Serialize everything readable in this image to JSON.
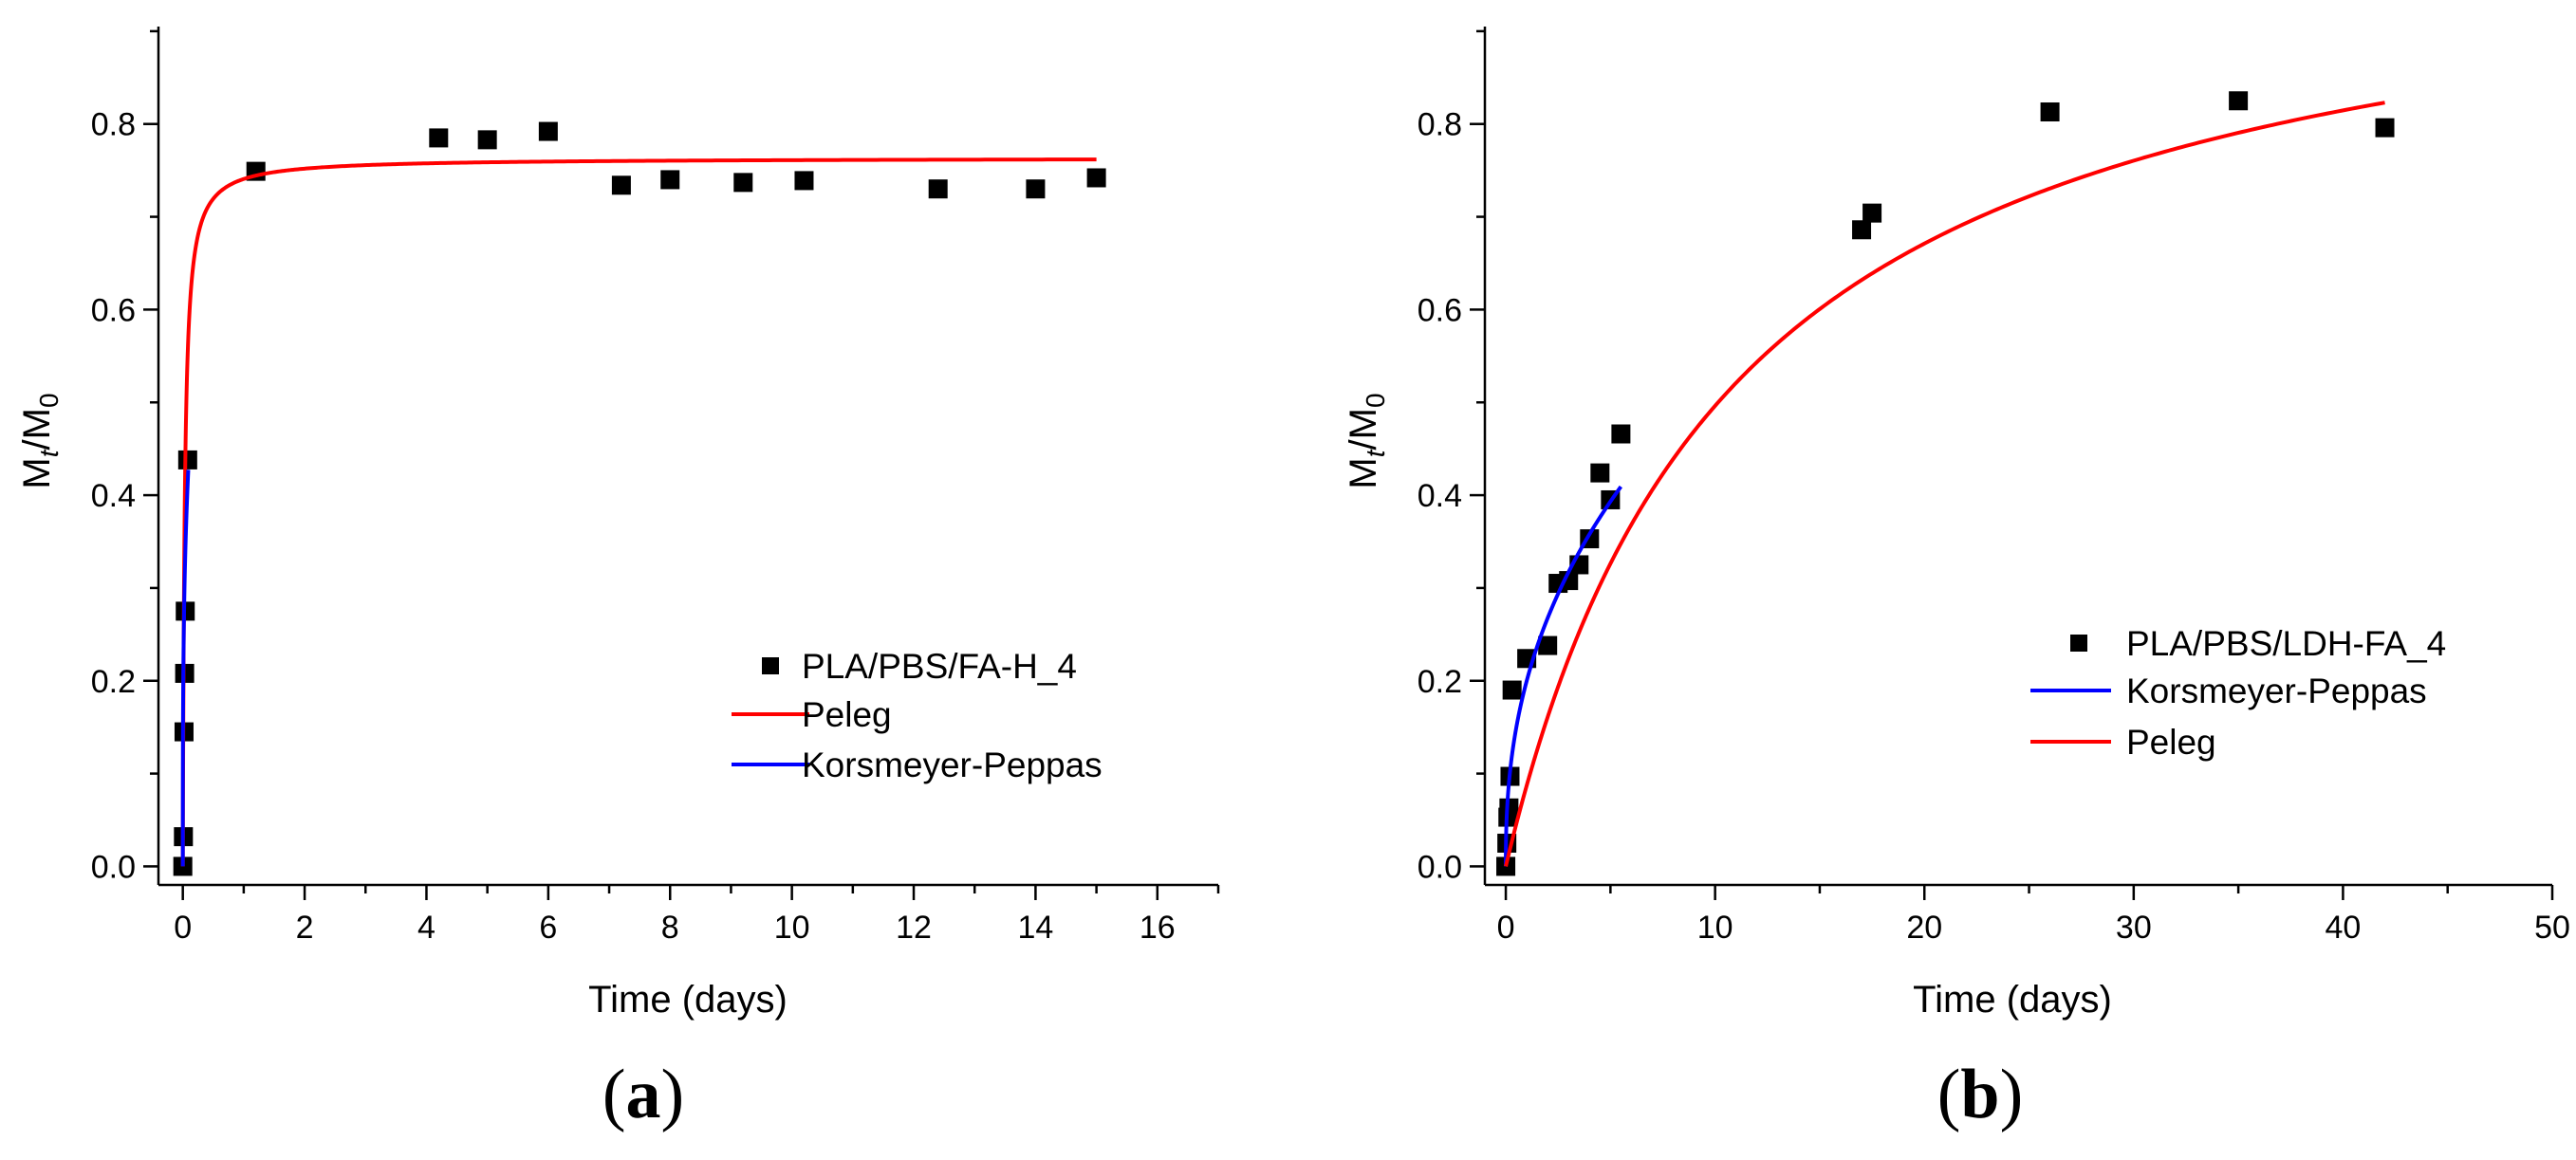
{
  "chart_data": [
    {
      "type": "scatter",
      "panel_label": "(a)",
      "panel_letter": "a",
      "xlabel": "Time (days)",
      "ylabel": "Mt/M0",
      "ylabel_parts": {
        "main": "M",
        "sub1": "t",
        "sep": "/M",
        "sub2": "0"
      },
      "xlim": [
        -0.4,
        17
      ],
      "ylim": [
        -0.02,
        0.905
      ],
      "xticks": [
        0,
        2,
        4,
        6,
        8,
        10,
        12,
        14,
        16
      ],
      "xtick_labels": [
        "0",
        "2",
        "4",
        "6",
        "8",
        "10",
        "12",
        "14",
        "16"
      ],
      "yticks": [
        0.0,
        0.2,
        0.4,
        0.6,
        0.8
      ],
      "ytick_labels": [
        "0.0",
        "0.2",
        "0.4",
        "0.6",
        "0.8"
      ],
      "legend_position": "bottom-right",
      "series": [
        {
          "name": "PLA/PBS/FA-H_4",
          "kind": "points",
          "color": "#000000",
          "x": [
            0,
            0.01,
            0.02,
            0.03,
            0.04,
            0.08,
            1.2,
            4.2,
            5.0,
            6.0,
            7.2,
            8.0,
            9.2,
            10.2,
            12.4,
            14.0,
            15.0
          ],
          "y": [
            0.0,
            0.032,
            0.145,
            0.208,
            0.275,
            0.438,
            0.749,
            0.785,
            0.783,
            0.792,
            0.734,
            0.74,
            0.737,
            0.739,
            0.73,
            0.73,
            0.742
          ]
        },
        {
          "name": "Peleg",
          "kind": "peleg",
          "color": "#ff0000",
          "k1": 0.04,
          "k2": 1.31,
          "xmax": 15
        },
        {
          "name": "Korsmeyer-Peppas",
          "kind": "power",
          "color": "#0000ff",
          "k": 0.88,
          "n": 0.3,
          "xmax": 0.09
        }
      ],
      "legend_order": [
        "PLA/PBS/FA-H_4",
        "Peleg",
        "Korsmeyer-Peppas"
      ]
    },
    {
      "type": "scatter",
      "panel_label": "(b)",
      "panel_letter": "b",
      "xlabel": "Time (days)",
      "ylabel": "Mt/M0",
      "ylabel_parts": {
        "main": "M",
        "sub1": "t",
        "sep": "/M",
        "sub2": "0"
      },
      "xlim": [
        -1,
        50
      ],
      "ylim": [
        -0.02,
        0.905
      ],
      "xticks": [
        0,
        10,
        20,
        30,
        40,
        50
      ],
      "xtick_labels": [
        "0",
        "10",
        "20",
        "30",
        "40",
        "50"
      ],
      "yticks": [
        0.0,
        0.2,
        0.4,
        0.6,
        0.8
      ],
      "ytick_labels": [
        "0.0",
        "0.2",
        "0.4",
        "0.6",
        "0.8"
      ],
      "legend_position": "bottom-right",
      "series": [
        {
          "name": "PLA/PBS/LDH-FA_4",
          "kind": "points",
          "color": "#000000",
          "x": [
            0,
            0.05,
            0.1,
            0.15,
            0.2,
            0.3,
            1.0,
            2.0,
            2.5,
            3.0,
            3.5,
            4.0,
            4.5,
            5.0,
            5.5,
            17.0,
            17.5,
            26.0,
            35.0,
            42.0
          ],
          "y": [
            0.0,
            0.025,
            0.053,
            0.063,
            0.097,
            0.19,
            0.224,
            0.238,
            0.305,
            0.308,
            0.325,
            0.353,
            0.424,
            0.395,
            0.466,
            0.686,
            0.704,
            0.813,
            0.825,
            0.796
          ]
        },
        {
          "name": "Korsmeyer-Peppas",
          "kind": "power",
          "color": "#0000ff",
          "k": 0.2,
          "n": 0.42,
          "xmax": 5.5
        },
        {
          "name": "Peleg",
          "kind": "peleg",
          "color": "#ff0000",
          "k1": 10.5,
          "k2": 0.965,
          "xmax": 42
        }
      ],
      "legend_order": [
        "PLA/PBS/LDH-FA_4",
        "Korsmeyer-Peppas",
        "Peleg"
      ]
    }
  ]
}
